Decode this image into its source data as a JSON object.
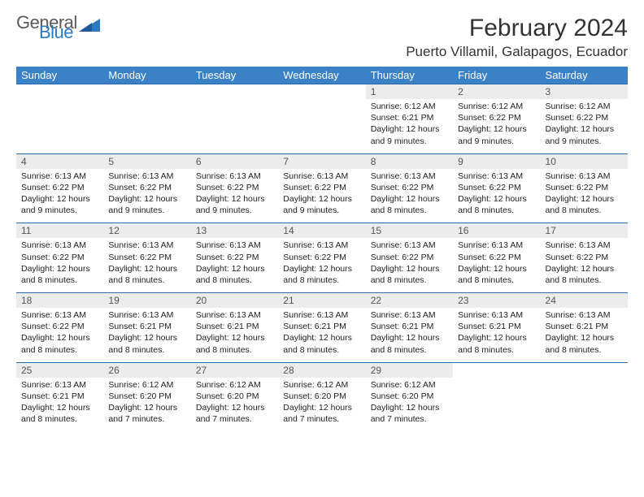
{
  "logo": {
    "general": "General",
    "blue": "Blue"
  },
  "header": {
    "month_title": "February 2024",
    "location": "Puerto Villamil, Galapagos, Ecuador"
  },
  "colors": {
    "header_bg": "#3a81c5",
    "header_text": "#ffffff",
    "daynum_bg": "#ececec",
    "row_border": "#2a6aa8",
    "logo_gray": "#5a5a5a",
    "logo_blue": "#2a79c4"
  },
  "weekdays": [
    "Sunday",
    "Monday",
    "Tuesday",
    "Wednesday",
    "Thursday",
    "Friday",
    "Saturday"
  ],
  "weeks": [
    [
      null,
      null,
      null,
      null,
      {
        "n": "1",
        "sunrise": "6:12 AM",
        "sunset": "6:21 PM",
        "daylight": "12 hours and 9 minutes."
      },
      {
        "n": "2",
        "sunrise": "6:12 AM",
        "sunset": "6:22 PM",
        "daylight": "12 hours and 9 minutes."
      },
      {
        "n": "3",
        "sunrise": "6:12 AM",
        "sunset": "6:22 PM",
        "daylight": "12 hours and 9 minutes."
      }
    ],
    [
      {
        "n": "4",
        "sunrise": "6:13 AM",
        "sunset": "6:22 PM",
        "daylight": "12 hours and 9 minutes."
      },
      {
        "n": "5",
        "sunrise": "6:13 AM",
        "sunset": "6:22 PM",
        "daylight": "12 hours and 9 minutes."
      },
      {
        "n": "6",
        "sunrise": "6:13 AM",
        "sunset": "6:22 PM",
        "daylight": "12 hours and 9 minutes."
      },
      {
        "n": "7",
        "sunrise": "6:13 AM",
        "sunset": "6:22 PM",
        "daylight": "12 hours and 9 minutes."
      },
      {
        "n": "8",
        "sunrise": "6:13 AM",
        "sunset": "6:22 PM",
        "daylight": "12 hours and 8 minutes."
      },
      {
        "n": "9",
        "sunrise": "6:13 AM",
        "sunset": "6:22 PM",
        "daylight": "12 hours and 8 minutes."
      },
      {
        "n": "10",
        "sunrise": "6:13 AM",
        "sunset": "6:22 PM",
        "daylight": "12 hours and 8 minutes."
      }
    ],
    [
      {
        "n": "11",
        "sunrise": "6:13 AM",
        "sunset": "6:22 PM",
        "daylight": "12 hours and 8 minutes."
      },
      {
        "n": "12",
        "sunrise": "6:13 AM",
        "sunset": "6:22 PM",
        "daylight": "12 hours and 8 minutes."
      },
      {
        "n": "13",
        "sunrise": "6:13 AM",
        "sunset": "6:22 PM",
        "daylight": "12 hours and 8 minutes."
      },
      {
        "n": "14",
        "sunrise": "6:13 AM",
        "sunset": "6:22 PM",
        "daylight": "12 hours and 8 minutes."
      },
      {
        "n": "15",
        "sunrise": "6:13 AM",
        "sunset": "6:22 PM",
        "daylight": "12 hours and 8 minutes."
      },
      {
        "n": "16",
        "sunrise": "6:13 AM",
        "sunset": "6:22 PM",
        "daylight": "12 hours and 8 minutes."
      },
      {
        "n": "17",
        "sunrise": "6:13 AM",
        "sunset": "6:22 PM",
        "daylight": "12 hours and 8 minutes."
      }
    ],
    [
      {
        "n": "18",
        "sunrise": "6:13 AM",
        "sunset": "6:22 PM",
        "daylight": "12 hours and 8 minutes."
      },
      {
        "n": "19",
        "sunrise": "6:13 AM",
        "sunset": "6:21 PM",
        "daylight": "12 hours and 8 minutes."
      },
      {
        "n": "20",
        "sunrise": "6:13 AM",
        "sunset": "6:21 PM",
        "daylight": "12 hours and 8 minutes."
      },
      {
        "n": "21",
        "sunrise": "6:13 AM",
        "sunset": "6:21 PM",
        "daylight": "12 hours and 8 minutes."
      },
      {
        "n": "22",
        "sunrise": "6:13 AM",
        "sunset": "6:21 PM",
        "daylight": "12 hours and 8 minutes."
      },
      {
        "n": "23",
        "sunrise": "6:13 AM",
        "sunset": "6:21 PM",
        "daylight": "12 hours and 8 minutes."
      },
      {
        "n": "24",
        "sunrise": "6:13 AM",
        "sunset": "6:21 PM",
        "daylight": "12 hours and 8 minutes."
      }
    ],
    [
      {
        "n": "25",
        "sunrise": "6:13 AM",
        "sunset": "6:21 PM",
        "daylight": "12 hours and 8 minutes."
      },
      {
        "n": "26",
        "sunrise": "6:12 AM",
        "sunset": "6:20 PM",
        "daylight": "12 hours and 7 minutes."
      },
      {
        "n": "27",
        "sunrise": "6:12 AM",
        "sunset": "6:20 PM",
        "daylight": "12 hours and 7 minutes."
      },
      {
        "n": "28",
        "sunrise": "6:12 AM",
        "sunset": "6:20 PM",
        "daylight": "12 hours and 7 minutes."
      },
      {
        "n": "29",
        "sunrise": "6:12 AM",
        "sunset": "6:20 PM",
        "daylight": "12 hours and 7 minutes."
      },
      null,
      null
    ]
  ],
  "labels": {
    "sunrise": "Sunrise: ",
    "sunset": "Sunset: ",
    "daylight": "Daylight: "
  }
}
